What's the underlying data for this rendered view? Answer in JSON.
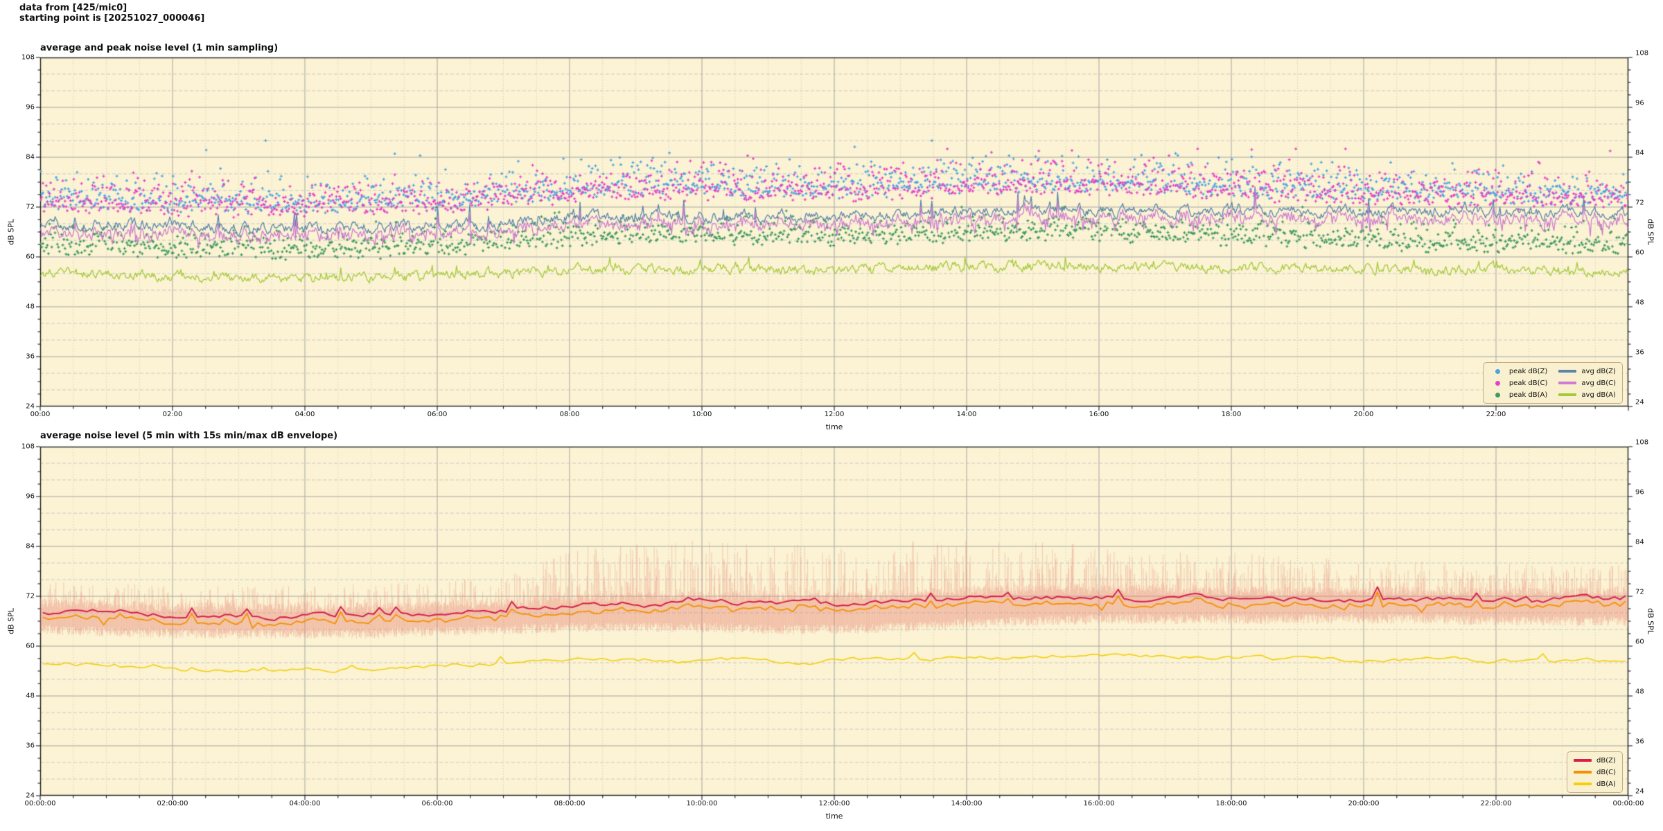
{
  "header": {
    "line1": "data from [425/mic0]",
    "line2": "starting point is [20251027_000046]"
  },
  "colors": {
    "plot_bg": "#fbf3d3",
    "grid_major": "#a6a6a6",
    "grid_minor_h": "#c9c9c9",
    "grid_minor_v": "#d6d2c2",
    "spine": "#1c1c1c",
    "legend_bg": "#f9f0cf",
    "legend_border": "#c3ac82"
  },
  "chart_data": [
    {
      "type": "scatter",
      "title": "average and peak noise level (1 min sampling)",
      "xlabel": "time",
      "ylabel_left": "dB SPL",
      "ylabel_right": "dB SPL",
      "ylim": [
        24,
        108
      ],
      "y_tick_values": [
        108,
        96,
        84,
        72,
        60,
        48,
        36,
        24
      ],
      "y_tick_labels": [
        "108",
        "96",
        "84",
        "72",
        "60",
        "48",
        "36",
        "24"
      ],
      "y_minor_grid_step_db": 4,
      "y_minor_tick_step_db": 3,
      "x_tick_hours": [
        0,
        2,
        4,
        6,
        8,
        10,
        12,
        14,
        16,
        18,
        20,
        22
      ],
      "x_tick_labels": [
        "00:00",
        "02:00",
        "04:00",
        "06:00",
        "08:00",
        "10:00",
        "12:00",
        "14:00",
        "16:00",
        "18:00",
        "20:00",
        "22:00"
      ],
      "x_minor_step_minutes": 30,
      "grid": true,
      "legend_position": "lower right",
      "sampling": "1 min",
      "series": [
        {
          "name": "peak dB(Z)",
          "kind": "scatter",
          "color": "#4ba3e3",
          "hourly_level": [
            74.5,
            74.0,
            73.5,
            73.2,
            73.2,
            73.5,
            74.0,
            75.0,
            76.5,
            77.2,
            77.2,
            76.8,
            76.8,
            77.2,
            77.8,
            78.2,
            78.2,
            78.0,
            77.0,
            76.5,
            76.0,
            75.5,
            75.2,
            75.2,
            75.2
          ],
          "spread_db": 4,
          "max_outlier_db": 88
        },
        {
          "name": "peak dB(C)",
          "kind": "scatter",
          "color": "#e83fc9",
          "hourly_level": [
            73.7,
            73.2,
            72.7,
            72.4,
            72.4,
            72.7,
            73.2,
            74.2,
            75.7,
            76.4,
            76.4,
            76.0,
            76.0,
            76.4,
            77.0,
            77.4,
            77.4,
            77.2,
            76.2,
            75.7,
            75.2,
            74.7,
            74.4,
            74.4,
            74.4
          ],
          "spread_db": 4,
          "max_outlier_db": 86
        },
        {
          "name": "peak dB(A)",
          "kind": "scatter",
          "color": "#3f9960",
          "hourly_level": [
            63.5,
            63.0,
            62.5,
            62.2,
            62.2,
            62.5,
            63.0,
            64.0,
            65.2,
            65.8,
            65.8,
            65.4,
            65.4,
            65.8,
            66.2,
            66.4,
            66.4,
            66.2,
            65.2,
            64.8,
            64.4,
            64.0,
            63.6,
            63.6,
            63.6
          ],
          "spread_db": 3.5,
          "max_outlier_db": 72
        },
        {
          "name": "avg dB(Z)",
          "kind": "line",
          "color": "#5b84ad",
          "hourly_level": [
            68.2,
            67.8,
            67.3,
            67.0,
            66.9,
            67.2,
            67.6,
            68.2,
            69.3,
            69.8,
            69.9,
            69.8,
            69.8,
            70.2,
            70.8,
            71.3,
            71.4,
            71.3,
            71.0,
            70.9,
            71.0,
            70.8,
            70.6,
            70.6,
            70.6
          ]
        },
        {
          "name": "avg dB(C)",
          "kind": "line",
          "color": "#cf7bd0",
          "hourly_level": [
            66.5,
            66.1,
            65.6,
            65.3,
            65.2,
            65.5,
            65.9,
            66.5,
            67.6,
            68.1,
            68.2,
            68.1,
            68.1,
            68.5,
            69.1,
            69.6,
            69.7,
            69.6,
            69.3,
            69.2,
            69.3,
            69.1,
            68.9,
            68.9,
            68.9
          ]
        },
        {
          "name": "avg dB(A)",
          "kind": "line",
          "color": "#a5c93b",
          "hourly_level": [
            56.2,
            55.8,
            55.2,
            54.8,
            54.7,
            55.0,
            55.5,
            56.2,
            56.8,
            57.2,
            57.2,
            56.9,
            56.8,
            57.2,
            57.6,
            57.8,
            57.8,
            57.7,
            57.3,
            57.2,
            57.2,
            56.9,
            56.7,
            56.6,
            56.6
          ]
        }
      ]
    },
    {
      "type": "line",
      "title": "average noise level (5 min with 15s min/max dB envelope)",
      "xlabel": "time",
      "ylabel_left": "dB SPL",
      "ylabel_right": "dB SPL",
      "ylim": [
        24,
        108
      ],
      "y_tick_values": [
        108,
        96,
        84,
        72,
        60,
        48,
        36,
        24
      ],
      "y_tick_labels": [
        "108",
        "96",
        "84",
        "72",
        "60",
        "48",
        "36",
        "24"
      ],
      "y_minor_grid_step_db": 4,
      "y_minor_tick_step_db": 3,
      "x_tick_hours": [
        0,
        2,
        4,
        6,
        8,
        10,
        12,
        14,
        16,
        18,
        20,
        22,
        24
      ],
      "x_tick_labels": [
        "00:00:00",
        "02:00:00",
        "04:00:00",
        "06:00:00",
        "08:00:00",
        "10:00:00",
        "12:00:00",
        "14:00:00",
        "16:00:00",
        "18:00:00",
        "20:00:00",
        "22:00:00",
        "00:00:00"
      ],
      "x_minor_step_minutes": 30,
      "grid": true,
      "legend_position": "lower right",
      "sampling": "5 min",
      "series": [
        {
          "name": "dB(Z)",
          "kind": "line",
          "color": "#d62049",
          "hourly_level": [
            68.6,
            68.2,
            67.7,
            67.4,
            67.3,
            67.6,
            68.0,
            68.6,
            69.7,
            70.2,
            70.3,
            70.2,
            70.2,
            70.6,
            71.4,
            72.0,
            72.0,
            71.8,
            71.5,
            71.4,
            71.5,
            71.3,
            71.1,
            71.1,
            71.1
          ]
        },
        {
          "name": "dB(C)",
          "kind": "line",
          "color": "#f39200",
          "hourly_level": [
            67.1,
            66.7,
            66.2,
            65.9,
            65.8,
            66.1,
            66.5,
            67.1,
            68.2,
            68.7,
            68.8,
            68.7,
            68.7,
            69.1,
            69.9,
            70.5,
            70.5,
            70.3,
            70.0,
            69.9,
            70.0,
            69.8,
            69.6,
            69.6,
            69.6
          ]
        },
        {
          "name": "dB(A)",
          "kind": "line",
          "color": "#f3cf0c",
          "hourly_level": [
            55.9,
            55.5,
            54.9,
            54.5,
            54.4,
            54.7,
            55.2,
            55.9,
            56.5,
            56.9,
            56.9,
            56.6,
            56.5,
            56.9,
            57.3,
            57.5,
            57.5,
            57.4,
            57.0,
            56.9,
            56.9,
            56.6,
            56.4,
            56.3,
            56.3
          ]
        }
      ],
      "band": {
        "name": "15s min/max envelope",
        "color": "rgba(232,126,112,0.35)",
        "hourly_max": [
          75.0,
          74.5,
          74.0,
          74.0,
          74.0,
          74.5,
          75.0,
          77.0,
          83.0,
          85.0,
          85.0,
          84.0,
          84.0,
          85.0,
          85.0,
          84.5,
          84.0,
          83.0,
          82.0,
          81.0,
          80.5,
          80.0,
          79.5,
          79.0,
          79.0
        ],
        "hourly_min": [
          64.0,
          63.5,
          63.0,
          63.0,
          63.0,
          63.0,
          63.5,
          64.0,
          64.5,
          64.5,
          64.5,
          64.0,
          64.0,
          64.5,
          65.5,
          66.0,
          66.5,
          66.5,
          66.5,
          66.5,
          66.5,
          66.5,
          66.0,
          66.0,
          66.0
        ]
      }
    }
  ]
}
